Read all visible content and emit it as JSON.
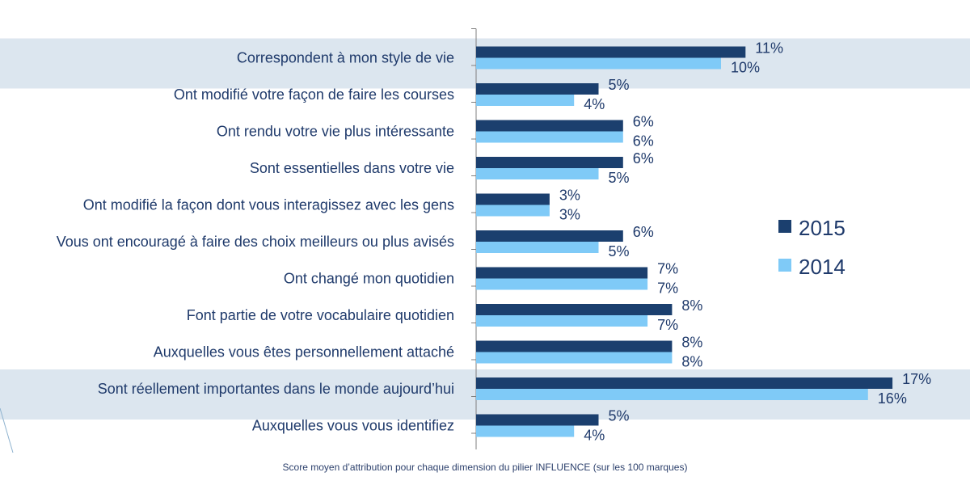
{
  "chart_data": {
    "type": "bar",
    "orientation": "horizontal",
    "categories": [
      "Correspondent à mon style de vie",
      "Ont modifié votre façon de faire les courses",
      "Ont rendu votre vie plus intéressante",
      "Sont essentielles dans votre vie",
      "Ont modifié la façon dont vous interagissez avec les gens",
      "Vous ont encouragé à faire des choix meilleurs ou plus avisés",
      "Ont changé mon quotidien",
      "Font partie de votre vocabulaire quotidien",
      "Auxquelles vous êtes personnellement attaché",
      "Sont réellement importantes dans le monde aujourd’hui",
      "Auxquelles vous vous identifiez"
    ],
    "series": [
      {
        "name": "2015",
        "color": "#1b3f6e",
        "values": [
          11,
          5,
          6,
          6,
          3,
          6,
          7,
          8,
          8,
          17,
          5
        ],
        "labels": [
          "11%",
          "5%",
          "6%",
          "6%",
          "3%",
          "6%",
          "7%",
          "8%",
          "8%",
          "17%",
          "5%"
        ]
      },
      {
        "name": "2014",
        "color": "#7fcaf7",
        "values": [
          10,
          4,
          6,
          5,
          3,
          5,
          7,
          7,
          8,
          16,
          4
        ],
        "labels": [
          "10%",
          "4%",
          "6%",
          "5%",
          "3%",
          "5%",
          "7%",
          "7%",
          "8%",
          "16%",
          "4%"
        ]
      }
    ],
    "highlighted_categories": [
      0,
      9
    ],
    "highlight_color": "#dce6ef",
    "legend": {
      "position": "right",
      "entries": [
        "2015",
        "2014"
      ]
    },
    "xlim": [
      0,
      18
    ],
    "grid": false
  },
  "footnote": "Score moyen d’attribution pour chaque dimension du pilier INFLUENCE (sur les  100 marques)"
}
